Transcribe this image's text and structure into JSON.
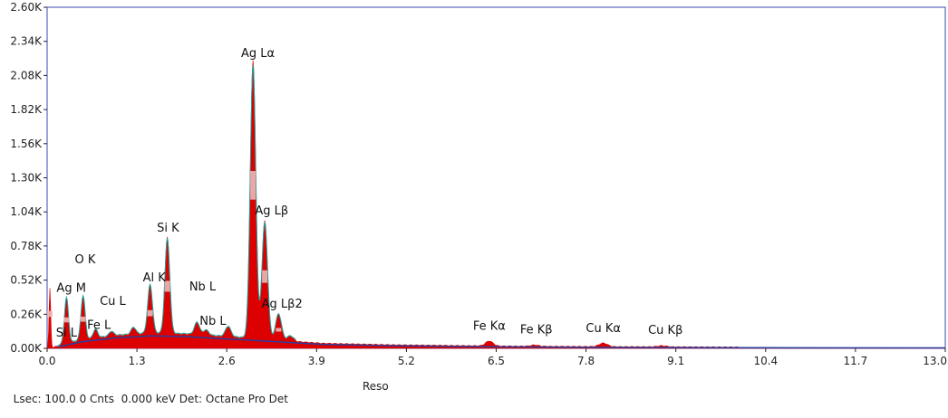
{
  "chart_data": {
    "type": "area",
    "title": "",
    "xlabel": "",
    "ylabel": "",
    "xlim": [
      0.0,
      13.0
    ],
    "ylim": [
      0,
      2600
    ],
    "x_ticks": [
      0.0,
      1.3,
      2.6,
      3.9,
      5.2,
      6.5,
      7.8,
      9.1,
      10.4,
      11.7,
      13.0
    ],
    "x_tick_labels": [
      "0.0",
      "1.3",
      "2.6",
      "3.9",
      "5.2",
      "6.5",
      "7.8",
      "9.1",
      "10.4",
      "11.7",
      "13.0"
    ],
    "y_ticks": [
      0,
      260,
      520,
      780,
      1040,
      1300,
      1560,
      1820,
      2080,
      2340,
      2600
    ],
    "y_tick_labels": [
      "0.00K",
      "0.26K",
      "0.52K",
      "0.78K",
      "1.04K",
      "1.30K",
      "1.56K",
      "1.82K",
      "2.08K",
      "2.34K",
      "2.60K"
    ],
    "grid": false,
    "colors": {
      "spectrum": "#dd0000",
      "background_fit": "#2a3f9e",
      "overlay": "#1aa6a0",
      "frame": "#3b4bb0"
    },
    "peaks": [
      {
        "x": 0.04,
        "y": 460
      },
      {
        "x": 0.28,
        "y": 380
      },
      {
        "x": 0.52,
        "y": 390
      },
      {
        "x": 0.7,
        "y": 130
      },
      {
        "x": 0.93,
        "y": 110
      },
      {
        "x": 1.25,
        "y": 140
      },
      {
        "x": 1.49,
        "y": 470
      },
      {
        "x": 1.74,
        "y": 830
      },
      {
        "x": 2.17,
        "y": 180
      },
      {
        "x": 2.3,
        "y": 120
      },
      {
        "x": 2.62,
        "y": 150
      },
      {
        "x": 2.98,
        "y": 2180
      },
      {
        "x": 3.15,
        "y": 960
      },
      {
        "x": 3.35,
        "y": 250
      },
      {
        "x": 3.52,
        "y": 80
      },
      {
        "x": 6.4,
        "y": 50
      },
      {
        "x": 7.06,
        "y": 20
      },
      {
        "x": 8.05,
        "y": 35
      },
      {
        "x": 8.9,
        "y": 15
      }
    ],
    "background_fit": [
      {
        "x": 0.15,
        "y": 10
      },
      {
        "x": 0.5,
        "y": 50
      },
      {
        "x": 1.0,
        "y": 80
      },
      {
        "x": 1.5,
        "y": 95
      },
      {
        "x": 2.0,
        "y": 90
      },
      {
        "x": 2.5,
        "y": 75
      },
      {
        "x": 3.0,
        "y": 60
      },
      {
        "x": 3.5,
        "y": 45
      },
      {
        "x": 4.0,
        "y": 30
      },
      {
        "x": 5.0,
        "y": 20
      },
      {
        "x": 6.5,
        "y": 12
      },
      {
        "x": 8.0,
        "y": 8
      },
      {
        "x": 10.0,
        "y": 5
      },
      {
        "x": 13.0,
        "y": 3
      }
    ],
    "annotations": [
      {
        "text": "Ag Lα",
        "x": 3.05,
        "y": 2220
      },
      {
        "text": "Ag Lβ",
        "x": 3.25,
        "y": 1020
      },
      {
        "text": "Si K",
        "x": 1.75,
        "y": 890
      },
      {
        "text": "O  K",
        "x": 0.55,
        "y": 650
      },
      {
        "text": "Al K",
        "x": 1.55,
        "y": 510
      },
      {
        "text": "Nb L",
        "x": 2.25,
        "y": 440
      },
      {
        "text": "Ag M",
        "x": 0.35,
        "y": 430
      },
      {
        "text": "Cu L",
        "x": 0.95,
        "y": 330
      },
      {
        "text": "Ag Lβ2",
        "x": 3.4,
        "y": 310
      },
      {
        "text": "Nb L",
        "x": 2.4,
        "y": 180
      },
      {
        "text": "Fe L",
        "x": 0.75,
        "y": 150
      },
      {
        "text": "Si L",
        "x": 0.28,
        "y": 90
      },
      {
        "text": "Fe Kα",
        "x": 6.4,
        "y": 140
      },
      {
        "text": "Fe Kβ",
        "x": 7.08,
        "y": 115
      },
      {
        "text": "Cu Kα",
        "x": 8.05,
        "y": 125
      },
      {
        "text": "Cu Kβ",
        "x": 8.95,
        "y": 110
      }
    ]
  },
  "status": {
    "text": "Lsec: 100.0 0 Cnts  0.000 keV Det: Octane Pro Det",
    "reso": "Reso"
  }
}
